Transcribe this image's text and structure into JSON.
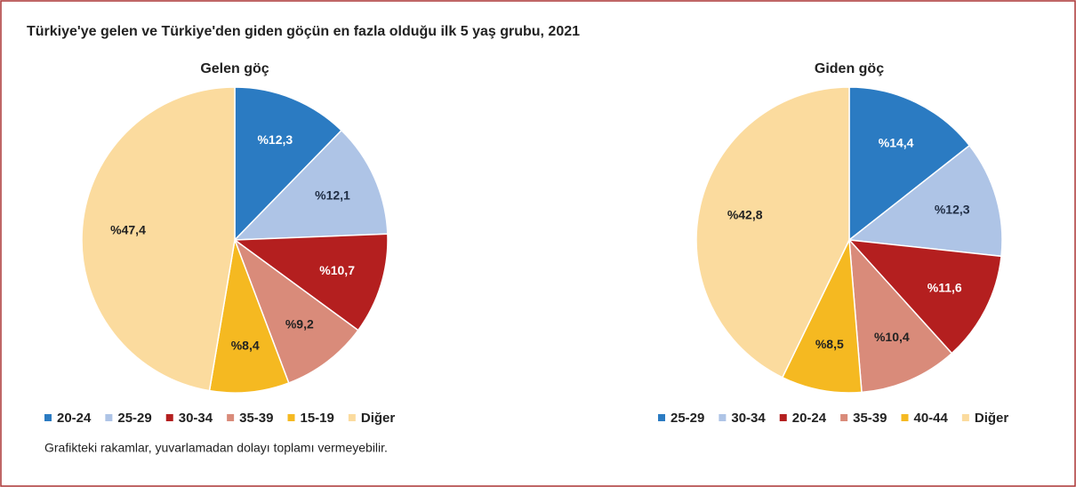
{
  "title": "Türkiye'ye gelen ve Türkiye'den giden göçün en fazla olduğu ilk 5 yaş grubu, 2021",
  "note": "Grafikteki rakamlar, yuvarlamadan dolayı toplamı vermeyebilir.",
  "chart_data": [
    {
      "type": "pie",
      "title": "Gelen göç",
      "categories": [
        "20-24",
        "25-29",
        "30-34",
        "35-39",
        "15-19",
        "Diğer"
      ],
      "values": [
        12.3,
        12.1,
        10.7,
        9.2,
        8.4,
        47.4
      ],
      "value_labels": [
        "%12,3",
        "%12,1",
        "%10,7",
        "%9,2",
        "%8,4",
        "%47,4"
      ],
      "colors": [
        "#2b7bc2",
        "#aec4e6",
        "#b41f1f",
        "#d98b7a",
        "#f5b921",
        "#fbdb9e"
      ],
      "label_colors": [
        "#ffffff",
        "#1f2d44",
        "#ffffff",
        "#222222",
        "#222222",
        "#222222"
      ]
    },
    {
      "type": "pie",
      "title": "Giden göç",
      "categories": [
        "25-29",
        "30-34",
        "20-24",
        "35-39",
        "40-44",
        "Diğer"
      ],
      "values": [
        14.4,
        12.3,
        11.6,
        10.4,
        8.5,
        42.8
      ],
      "value_labels": [
        "%14,4",
        "%12,3",
        "%11,6",
        "%10,4",
        "%8,5",
        "%42,8"
      ],
      "colors": [
        "#2b7bc2",
        "#aec4e6",
        "#b41f1f",
        "#d98b7a",
        "#f5b921",
        "#fbdb9e"
      ],
      "label_colors": [
        "#ffffff",
        "#1f2d44",
        "#ffffff",
        "#222222",
        "#222222",
        "#222222"
      ]
    }
  ]
}
